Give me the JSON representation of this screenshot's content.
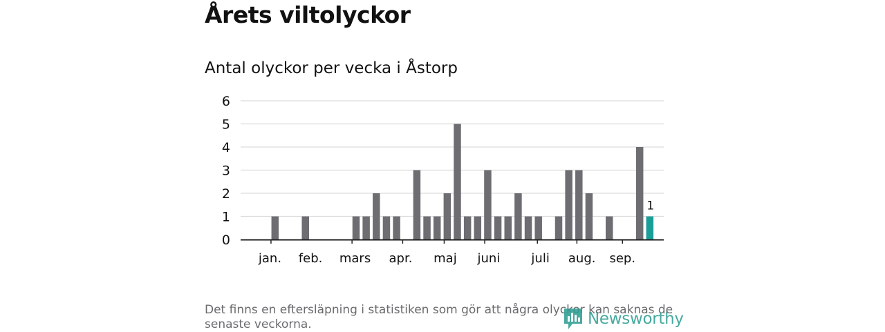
{
  "header": {
    "title": "Årets viltolyckor",
    "subtitle": "Antal olyckor per vecka i Åstorp"
  },
  "footnote": "Det finns en eftersläpning i statistiken som gör att några olyckor kan saknas de senaste veckorna.",
  "logo": {
    "text": "Newsworthy"
  },
  "colors": {
    "bar": "#6e6d72",
    "highlight": "#1a9e98",
    "grid": "#dcdcdc",
    "axis": "#222222",
    "brand": "#2e9e92"
  },
  "chart_data": {
    "type": "bar",
    "title": "Antal olyckor per vecka i Åstorp",
    "xlabel": "",
    "ylabel": "",
    "ylim": [
      0,
      6
    ],
    "yticks": [
      0,
      1,
      2,
      3,
      4,
      5,
      6
    ],
    "grid": true,
    "x": [
      1,
      2,
      3,
      4,
      5,
      6,
      7,
      8,
      9,
      10,
      11,
      12,
      13,
      14,
      15,
      16,
      17,
      18,
      19,
      20,
      21,
      22,
      23,
      24,
      25,
      26,
      27,
      28,
      29,
      30,
      31,
      32,
      33,
      34,
      35,
      36,
      37,
      38,
      39,
      40,
      41
    ],
    "values": [
      0,
      0,
      1,
      0,
      0,
      1,
      0,
      0,
      0,
      0,
      1,
      1,
      2,
      1,
      1,
      0,
      3,
      1,
      1,
      2,
      5,
      1,
      1,
      3,
      1,
      1,
      2,
      1,
      1,
      0,
      1,
      3,
      3,
      2,
      0,
      1,
      0,
      0,
      4,
      1,
      0
    ],
    "highlight_index": 39,
    "highlight_label": "1",
    "month_labels": [
      {
        "label": "jan.",
        "week": 2.5
      },
      {
        "label": "feb.",
        "week": 6.5
      },
      {
        "label": "mars",
        "week": 10.9
      },
      {
        "label": "apr.",
        "week": 15.4
      },
      {
        "label": "maj",
        "week": 19.8
      },
      {
        "label": "juni",
        "week": 24.1
      },
      {
        "label": "juli",
        "week": 29.2
      },
      {
        "label": "aug.",
        "week": 33.3
      },
      {
        "label": "sep.",
        "week": 37.3
      }
    ],
    "month_ticks": [
      2.6,
      10.6,
      15.6,
      19.7,
      23.7,
      28.9,
      32.8,
      37.3
    ]
  }
}
